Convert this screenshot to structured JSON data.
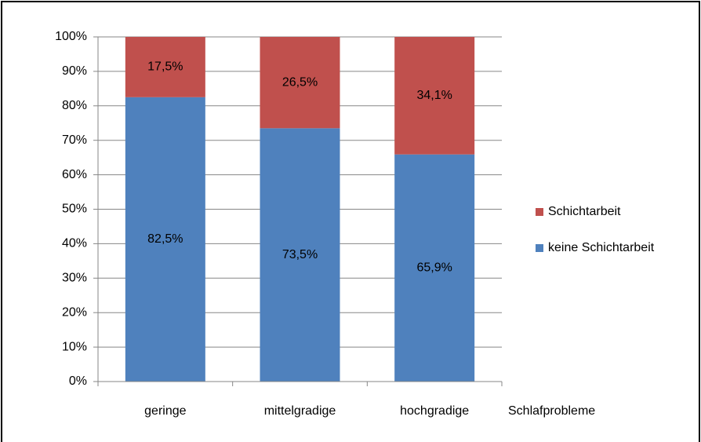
{
  "chart_data": {
    "type": "stacked_bar",
    "categories": [
      "geringe",
      "mittelgradige",
      "hochgradige"
    ],
    "x_label": "Schlafprobleme",
    "series": [
      {
        "name": "keine Schichtarbeit",
        "color": "#4f81bd",
        "values": [
          82.5,
          73.5,
          65.9
        ],
        "value_labels": [
          "82,5%",
          "73,5%",
          "65,9%"
        ]
      },
      {
        "name": "Schichtarbeit",
        "color": "#c0504d",
        "values": [
          17.5,
          26.5,
          34.1
        ],
        "value_labels": [
          "17,5%",
          "26,5%",
          "34,1%"
        ]
      }
    ],
    "ylim": [
      0,
      100
    ],
    "yticks": [
      {
        "value": 0,
        "label": "0%"
      },
      {
        "value": 10,
        "label": "10%"
      },
      {
        "value": 20,
        "label": "20%"
      },
      {
        "value": 30,
        "label": "30%"
      },
      {
        "value": 40,
        "label": "40%"
      },
      {
        "value": 50,
        "label": "50%"
      },
      {
        "value": 60,
        "label": "60%"
      },
      {
        "value": 70,
        "label": "70%"
      },
      {
        "value": 80,
        "label": "80%"
      },
      {
        "value": 90,
        "label": "90%"
      },
      {
        "value": 100,
        "label": "100%"
      }
    ],
    "grid": true,
    "legend": "right"
  }
}
